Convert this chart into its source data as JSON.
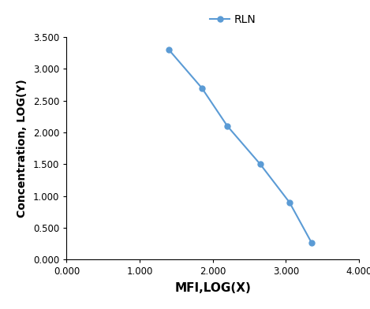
{
  "x": [
    1.4,
    1.85,
    2.2,
    2.65,
    3.05,
    3.35
  ],
  "y": [
    3.3,
    2.7,
    2.1,
    1.5,
    0.9,
    0.27
  ],
  "line_color": "#5b9bd5",
  "marker_color": "#5b9bd5",
  "marker": "o",
  "marker_size": 5,
  "line_width": 1.5,
  "legend_label": "RLN",
  "xlabel": "MFI,LOG(X)",
  "ylabel": "Concentration, LOG(Y)",
  "xlim": [
    0.0,
    4.0
  ],
  "ylim": [
    0.0,
    3.5
  ],
  "xticks": [
    0.0,
    1.0,
    2.0,
    3.0,
    4.0
  ],
  "yticks": [
    0.0,
    0.5,
    1.0,
    1.5,
    2.0,
    2.5,
    3.0,
    3.5
  ],
  "background_color": "#ffffff",
  "xlabel_fontsize": 11,
  "ylabel_fontsize": 10,
  "tick_fontsize": 8.5,
  "legend_fontsize": 10
}
